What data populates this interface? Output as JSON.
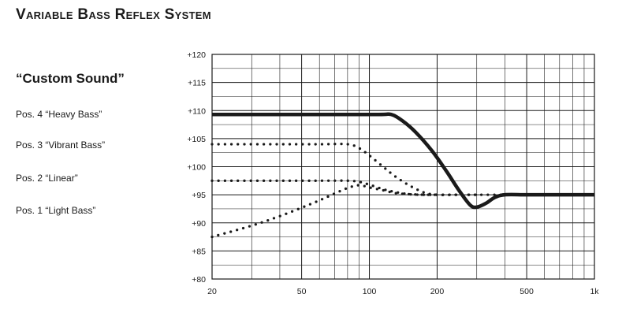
{
  "header": {
    "title": "Variable Bass Reflex System",
    "subtitle": "“Custom Sound”"
  },
  "legend": [
    {
      "label": "Pos. 4 “Heavy Bass”"
    },
    {
      "label": "Pos. 3 “Vibrant Bass”"
    },
    {
      "label": "Pos. 2 “Linear”"
    },
    {
      "label": "Pos. 1 “Light Bass”"
    }
  ],
  "chart_data": {
    "type": "line",
    "title": "Variable Bass Reflex System",
    "subtitle": "“Custom Sound”",
    "xlabel": "",
    "ylabel": "",
    "x_scale": "log",
    "xlim": [
      20,
      1000
    ],
    "ylim": [
      80,
      120
    ],
    "x_ticks": [
      20,
      50,
      100,
      200,
      500,
      1000
    ],
    "x_tick_labels": [
      "20",
      "50",
      "100",
      "200",
      "500",
      "1k"
    ],
    "y_ticks": [
      80,
      85,
      90,
      95,
      100,
      105,
      110,
      115,
      120
    ],
    "y_tick_labels": [
      "+80",
      "+85",
      "+90",
      "+95",
      "+100",
      "+105",
      "+110",
      "+115",
      "+120"
    ],
    "grid": true,
    "colors": {
      "line": "#1a1a1a",
      "grid": "#1a1a1a"
    },
    "series": [
      {
        "name": "Pos. 4 “Heavy Bass”",
        "style": "solid-thick",
        "x": [
          20,
          60,
          110,
          125,
          140,
          160,
          190,
          220,
          250,
          280,
          300,
          330,
          360,
          400,
          500,
          700,
          1000
        ],
        "y": [
          109.3,
          109.3,
          109.3,
          109.3,
          108.2,
          106.2,
          102.8,
          99.2,
          95.8,
          93.2,
          92.8,
          93.5,
          94.5,
          95.0,
          95.0,
          95.0,
          95.0
        ]
      },
      {
        "name": "Pos. 3 “Vibrant Bass”",
        "style": "dotted",
        "x": [
          20,
          40,
          60,
          80,
          90,
          100,
          115,
          130,
          150,
          175,
          200,
          250,
          300,
          400
        ],
        "y": [
          104.0,
          104.0,
          104.0,
          104.0,
          103.3,
          102.0,
          100.0,
          98.3,
          96.7,
          95.4,
          95.0,
          95.0,
          95.0,
          95.0
        ]
      },
      {
        "name": "Pos. 2 “Linear”",
        "style": "dotted",
        "x": [
          20,
          40,
          60,
          80,
          90,
          100,
          115,
          130,
          150,
          175,
          200,
          250,
          300
        ],
        "y": [
          97.5,
          97.5,
          97.5,
          97.5,
          97.3,
          96.8,
          96.0,
          95.5,
          95.1,
          95.0,
          95.0,
          95.0,
          95.0
        ]
      },
      {
        "name": "Pos. 1 “Light Bass”",
        "style": "dotted",
        "x": [
          20,
          30,
          40,
          50,
          60,
          70,
          80,
          90,
          100,
          115,
          130,
          150,
          175,
          200
        ],
        "y": [
          87.5,
          89.5,
          91.2,
          92.7,
          94.0,
          95.2,
          96.2,
          96.7,
          96.3,
          95.8,
          95.3,
          95.1,
          95.0,
          95.0
        ]
      }
    ]
  }
}
